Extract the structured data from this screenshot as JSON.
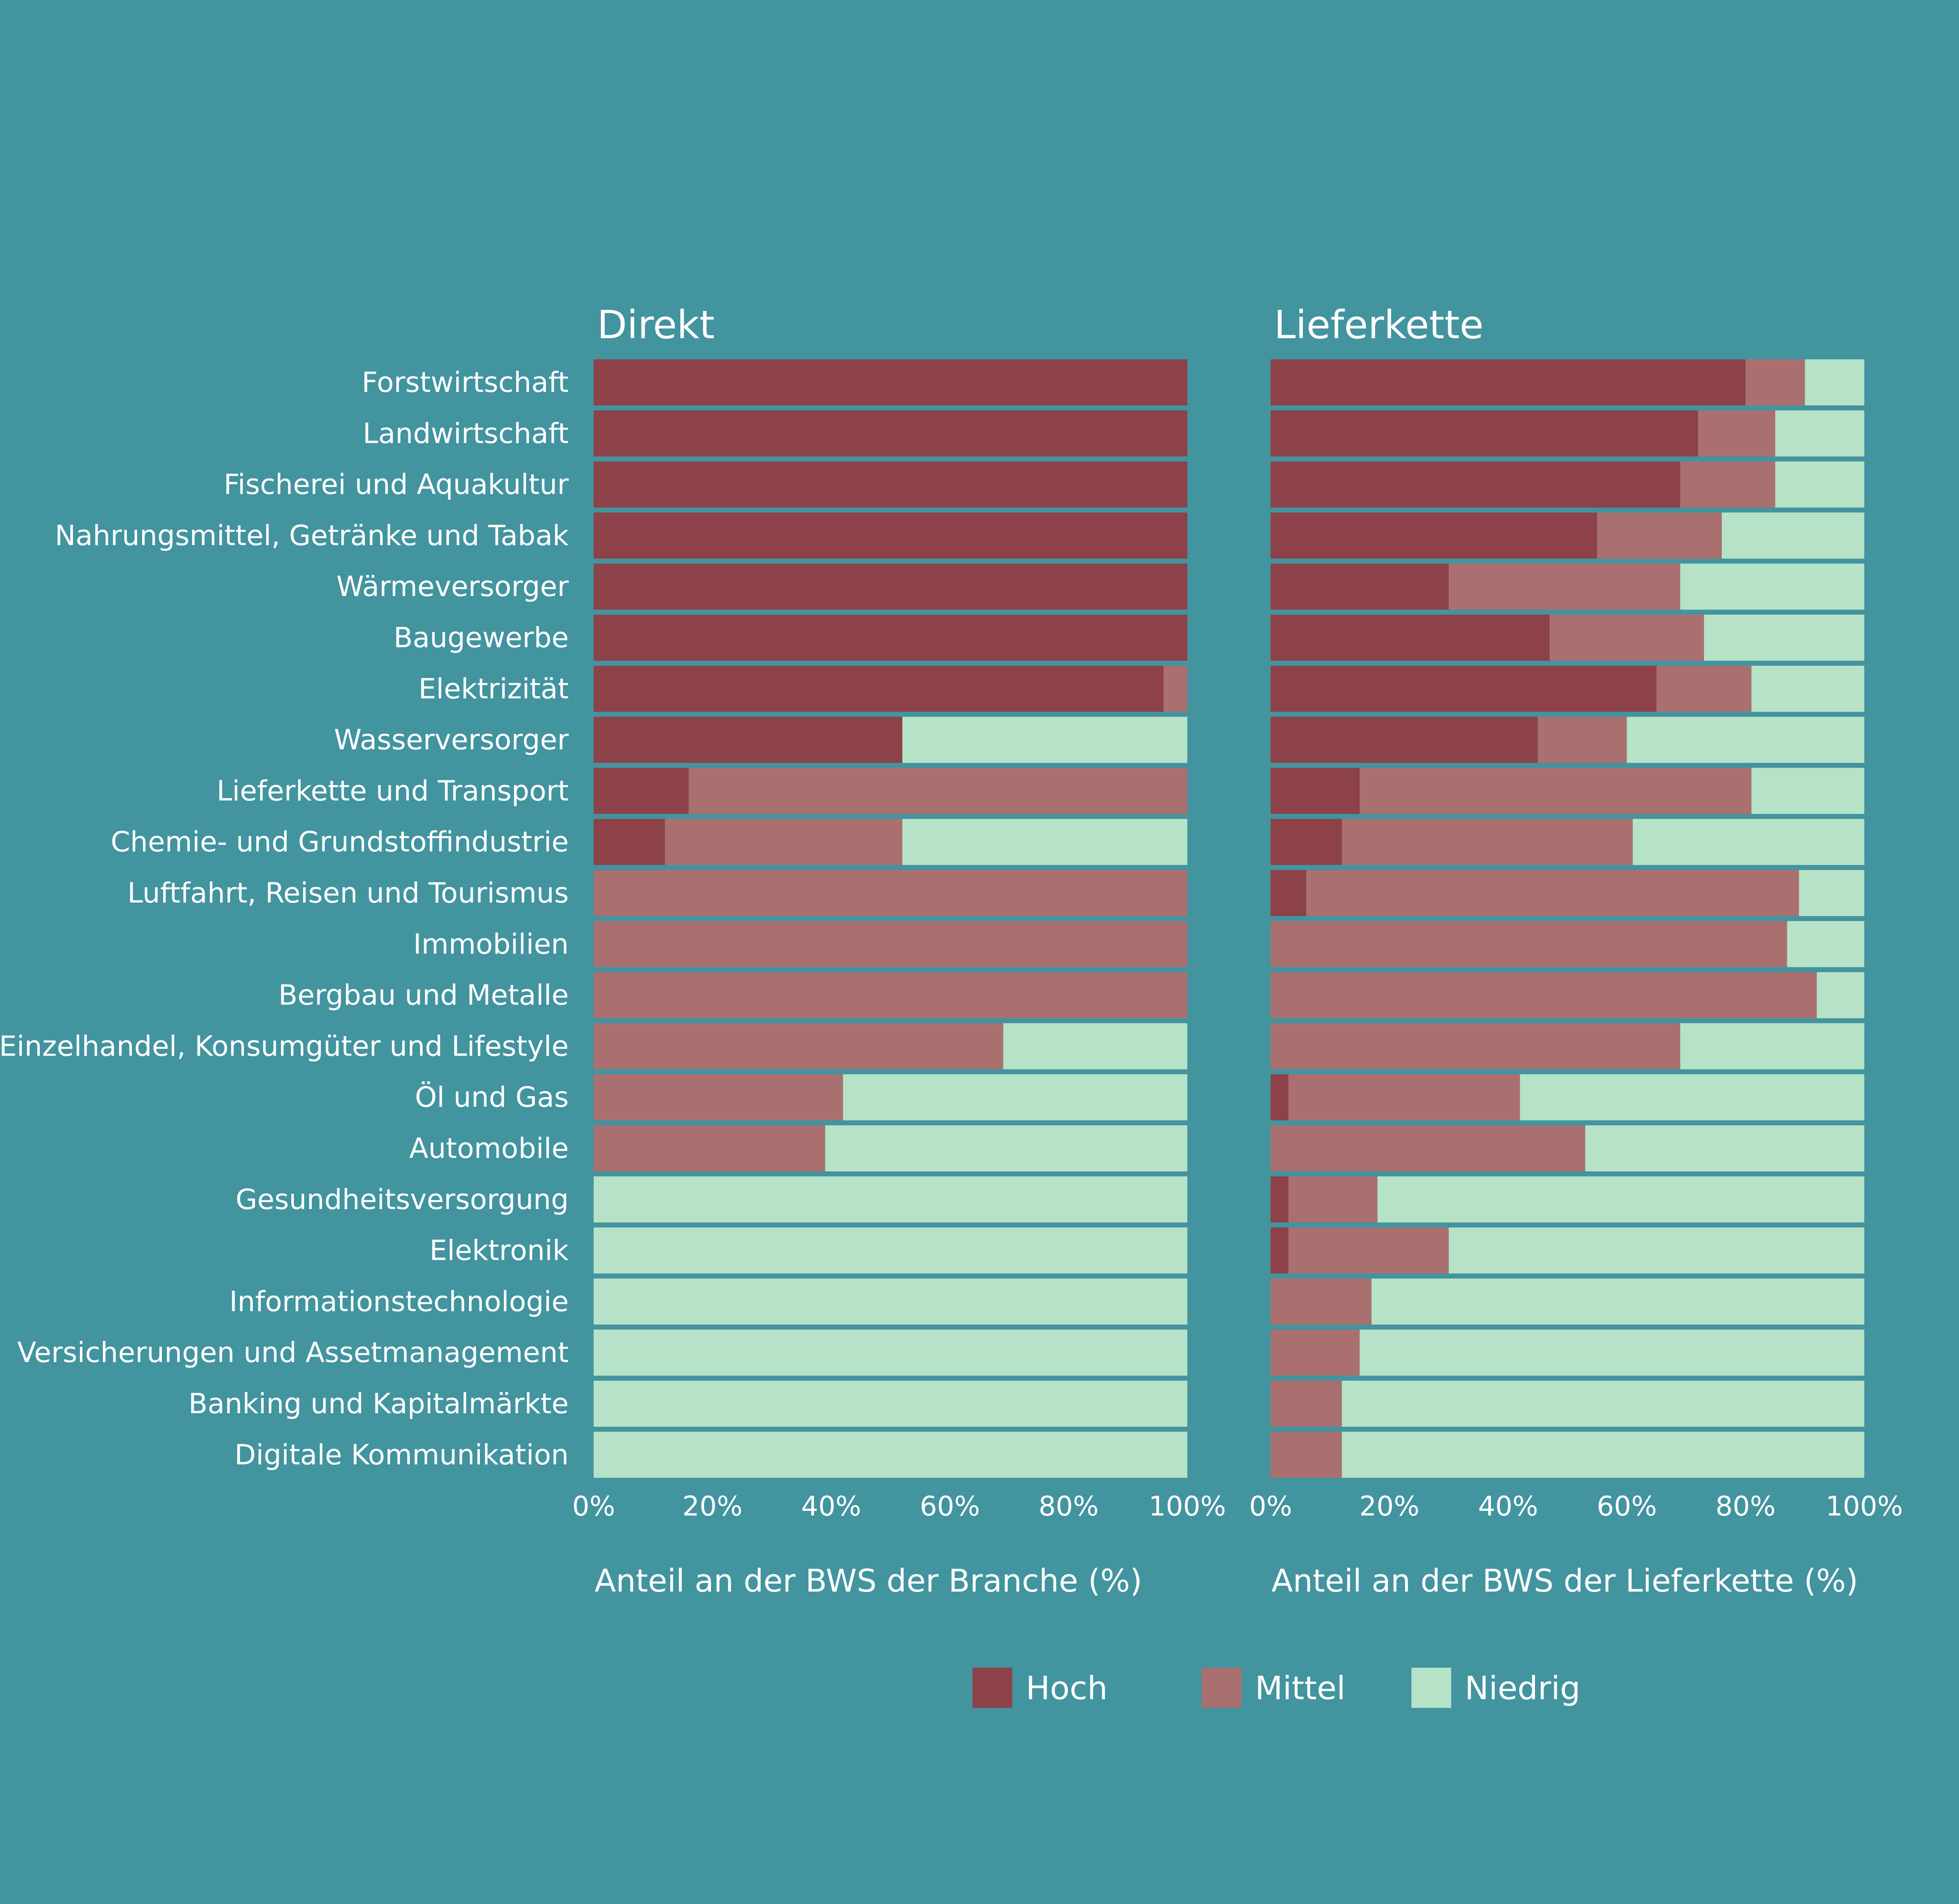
{
  "colors": {
    "background": "#42949f",
    "Hoch": "#8d4149",
    "Mittel": "#aa7070",
    "Niedrig": "#b6e3c7",
    "text": "#ffffff"
  },
  "chart_data": [
    {
      "type": "bar",
      "orientation": "horizontal",
      "stacked": true,
      "title": "Direkt",
      "xlabel": "Anteil an der BWS der Branche (%)",
      "xlim": [
        0,
        100
      ],
      "xticks": [
        "0%",
        "20%",
        "40%",
        "60%",
        "80%",
        "100%"
      ],
      "categories": [
        "Forstwirtschaft",
        "Landwirtschaft",
        "Fischerei und Aquakultur",
        "Nahrungsmittel, Getränke und Tabak",
        "Wärmeversorger",
        "Baugewerbe",
        "Elektrizität",
        "Wasserversorger",
        "Lieferkette und Transport",
        "Chemie- und Grundstoffindustrie",
        "Luftfahrt, Reisen und Tourismus",
        "Immobilien",
        "Bergbau und Metalle",
        "Einzelhandel, Konsumgüter und Lifestyle",
        "Öl und Gas",
        "Automobile",
        "Gesundheitsversorgung",
        "Elektronik",
        "Informationstechnologie",
        "Versicherungen und Assetmanagement",
        "Banking und Kapitalmärkte",
        "Digitale Kommunikation"
      ],
      "series": [
        {
          "name": "Hoch",
          "values": [
            100,
            100,
            100,
            100,
            100,
            100,
            96,
            52,
            16,
            12,
            0,
            0,
            0,
            0,
            0,
            0,
            0,
            0,
            0,
            0,
            0,
            0
          ]
        },
        {
          "name": "Mittel",
          "values": [
            0,
            0,
            0,
            0,
            0,
            0,
            4,
            0,
            84,
            40,
            100,
            100,
            100,
            69,
            42,
            39,
            0,
            0,
            0,
            0,
            0,
            0
          ]
        },
        {
          "name": "Niedrig",
          "values": [
            0,
            0,
            0,
            0,
            0,
            0,
            0,
            48,
            0,
            48,
            0,
            0,
            0,
            31,
            58,
            61,
            100,
            100,
            100,
            100,
            100,
            100
          ]
        }
      ]
    },
    {
      "type": "bar",
      "orientation": "horizontal",
      "stacked": true,
      "title": "Lieferkette",
      "xlabel": "Anteil an der BWS der Lieferkette (%)",
      "xlim": [
        0,
        100
      ],
      "xticks": [
        "0%",
        "20%",
        "40%",
        "60%",
        "80%",
        "100%"
      ],
      "categories": [
        "Forstwirtschaft",
        "Landwirtschaft",
        "Fischerei und Aquakultur",
        "Nahrungsmittel, Getränke und Tabak",
        "Wärmeversorger",
        "Baugewerbe",
        "Elektrizität",
        "Wasserversorger",
        "Lieferkette und Transport",
        "Chemie- und Grundstoffindustrie",
        "Luftfahrt, Reisen und Tourismus",
        "Immobilien",
        "Bergbau und Metalle",
        "Einzelhandel, Konsumgüter und Lifestyle",
        "Öl und Gas",
        "Automobile",
        "Gesundheitsversorgung",
        "Elektronik",
        "Informationstechnologie",
        "Versicherungen und Assetmanagement",
        "Banking und Kapitalmärkte",
        "Digitale Kommunikation"
      ],
      "series": [
        {
          "name": "Hoch",
          "values": [
            80,
            72,
            69,
            55,
            30,
            47,
            65,
            45,
            15,
            12,
            6,
            0,
            0,
            0,
            3,
            0,
            3,
            3,
            0,
            0,
            0,
            0
          ]
        },
        {
          "name": "Mittel",
          "values": [
            10,
            13,
            16,
            21,
            39,
            26,
            16,
            15,
            66,
            49,
            83,
            87,
            92,
            69,
            39,
            53,
            15,
            27,
            17,
            15,
            12,
            12
          ]
        },
        {
          "name": "Niedrig",
          "values": [
            10,
            15,
            15,
            24,
            31,
            27,
            19,
            40,
            19,
            39,
            11,
            13,
            8,
            31,
            58,
            47,
            82,
            70,
            83,
            85,
            88,
            88
          ]
        }
      ]
    }
  ],
  "legend": {
    "placement": "bottom-center",
    "items": [
      "Hoch",
      "Mittel",
      "Niedrig"
    ]
  }
}
